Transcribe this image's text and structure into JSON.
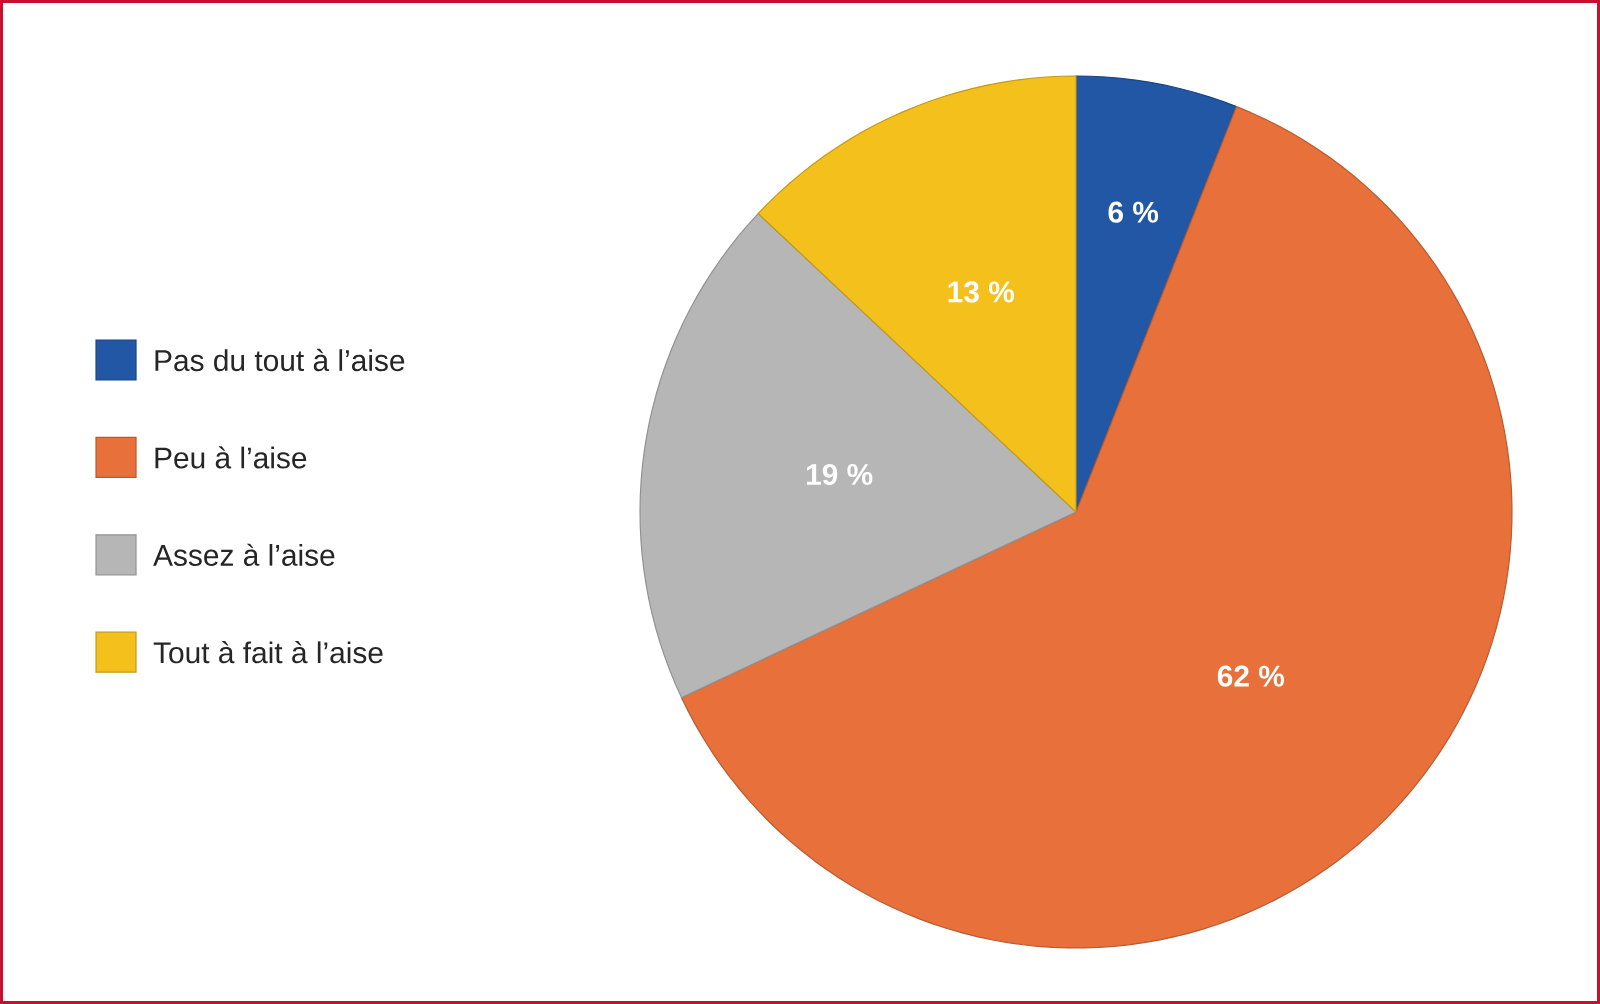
{
  "chart_data": {
    "type": "pie",
    "categories": [
      "Pas du tout à l’aise",
      "Peu à l’aise",
      "Assez à l’aise",
      "Tout à fait à l’aise"
    ],
    "values": [
      6,
      62,
      19,
      13
    ],
    "value_labels": [
      "6 %",
      "62 %",
      "19 %",
      "13 %"
    ],
    "colors": [
      "#2257a6",
      "#e8703b",
      "#b6b6b6",
      "#f4c01c"
    ],
    "legend": "left"
  }
}
